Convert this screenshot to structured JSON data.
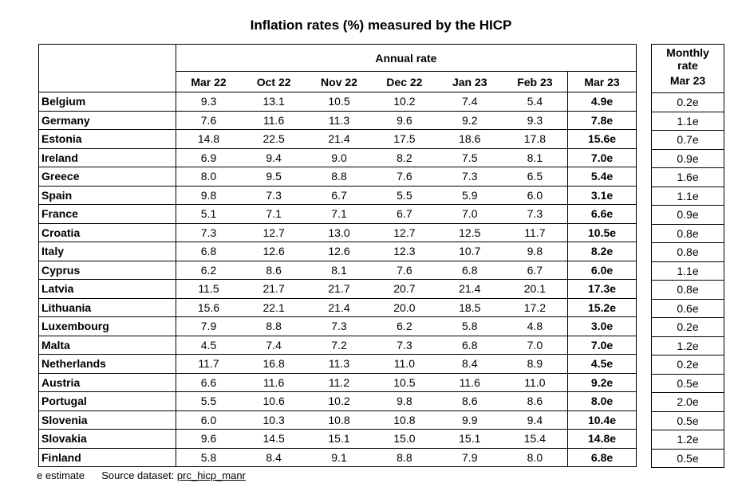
{
  "title": "Inflation rates (%) measured by the HICP",
  "annual_label": "Annual rate",
  "monthly_label_line1": "Monthly",
  "monthly_label_line2": "rate",
  "monthly_period": "Mar 23",
  "periods": [
    "Mar 22",
    "Oct 22",
    "Nov 22",
    "Dec 22",
    "Jan 23",
    "Feb 23",
    "Mar 23"
  ],
  "rows": [
    {
      "country": "Belgium",
      "annual": [
        "9.3",
        "13.1",
        "10.5",
        "10.2",
        "7.4",
        "5.4",
        "4.9e"
      ],
      "monthly": "0.2e"
    },
    {
      "country": "Germany",
      "annual": [
        "7.6",
        "11.6",
        "11.3",
        "9.6",
        "9.2",
        "9.3",
        "7.8e"
      ],
      "monthly": "1.1e"
    },
    {
      "country": "Estonia",
      "annual": [
        "14.8",
        "22.5",
        "21.4",
        "17.5",
        "18.6",
        "17.8",
        "15.6e"
      ],
      "monthly": "0.7e"
    },
    {
      "country": "Ireland",
      "annual": [
        "6.9",
        "9.4",
        "9.0",
        "8.2",
        "7.5",
        "8.1",
        "7.0e"
      ],
      "monthly": "0.9e"
    },
    {
      "country": "Greece",
      "annual": [
        "8.0",
        "9.5",
        "8.8",
        "7.6",
        "7.3",
        "6.5",
        "5.4e"
      ],
      "monthly": "1.6e"
    },
    {
      "country": "Spain",
      "annual": [
        "9.8",
        "7.3",
        "6.7",
        "5.5",
        "5.9",
        "6.0",
        "3.1e"
      ],
      "monthly": "1.1e"
    },
    {
      "country": "France",
      "annual": [
        "5.1",
        "7.1",
        "7.1",
        "6.7",
        "7.0",
        "7.3",
        "6.6e"
      ],
      "monthly": "0.9e"
    },
    {
      "country": "Croatia",
      "annual": [
        "7.3",
        "12.7",
        "13.0",
        "12.7",
        "12.5",
        "11.7",
        "10.5e"
      ],
      "monthly": "0.8e"
    },
    {
      "country": "Italy",
      "annual": [
        "6.8",
        "12.6",
        "12.6",
        "12.3",
        "10.7",
        "9.8",
        "8.2e"
      ],
      "monthly": "0.8e"
    },
    {
      "country": "Cyprus",
      "annual": [
        "6.2",
        "8.6",
        "8.1",
        "7.6",
        "6.8",
        "6.7",
        "6.0e"
      ],
      "monthly": "1.1e"
    },
    {
      "country": "Latvia",
      "annual": [
        "11.5",
        "21.7",
        "21.7",
        "20.7",
        "21.4",
        "20.1",
        "17.3e"
      ],
      "monthly": "0.8e"
    },
    {
      "country": "Lithuania",
      "annual": [
        "15.6",
        "22.1",
        "21.4",
        "20.0",
        "18.5",
        "17.2",
        "15.2e"
      ],
      "monthly": "0.6e"
    },
    {
      "country": "Luxembourg",
      "annual": [
        "7.9",
        "8.8",
        "7.3",
        "6.2",
        "5.8",
        "4.8",
        "3.0e"
      ],
      "monthly": "0.2e"
    },
    {
      "country": "Malta",
      "annual": [
        "4.5",
        "7.4",
        "7.2",
        "7.3",
        "6.8",
        "7.0",
        "7.0e"
      ],
      "monthly": "1.2e"
    },
    {
      "country": "Netherlands",
      "annual": [
        "11.7",
        "16.8",
        "11.3",
        "11.0",
        "8.4",
        "8.9",
        "4.5e"
      ],
      "monthly": "0.2e"
    },
    {
      "country": "Austria",
      "annual": [
        "6.6",
        "11.6",
        "11.2",
        "10.5",
        "11.6",
        "11.0",
        "9.2e"
      ],
      "monthly": "0.5e"
    },
    {
      "country": "Portugal",
      "annual": [
        "5.5",
        "10.6",
        "10.2",
        "9.8",
        "8.6",
        "8.6",
        "8.0e"
      ],
      "monthly": "2.0e"
    },
    {
      "country": "Slovenia",
      "annual": [
        "6.0",
        "10.3",
        "10.8",
        "10.8",
        "9.9",
        "9.4",
        "10.4e"
      ],
      "monthly": "0.5e"
    },
    {
      "country": "Slovakia",
      "annual": [
        "9.6",
        "14.5",
        "15.1",
        "15.0",
        "15.1",
        "15.4",
        "14.8e"
      ],
      "monthly": "1.2e"
    },
    {
      "country": "Finland",
      "annual": [
        "5.8",
        "8.4",
        "9.1",
        "8.8",
        "7.9",
        "8.0",
        "6.8e"
      ],
      "monthly": "0.5e"
    }
  ],
  "footer": {
    "estimate_note": "e estimate",
    "source_label": "Source dataset:",
    "source_link": "prc_hicp_manr"
  }
}
